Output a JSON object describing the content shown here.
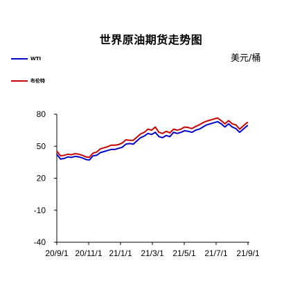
{
  "chart_data": {
    "type": "line",
    "title": "世界原油期货走势图",
    "unit": "美元/桶",
    "ylim": [
      -40,
      80
    ],
    "yticks": [
      80,
      50,
      20,
      -10,
      -40
    ],
    "xticks": [
      "20/9/1",
      "20/11/1",
      "21/1/1",
      "21/3/1",
      "21/5/1",
      "21/7/1",
      "21/9/1"
    ],
    "xrange": [
      "2020-09-01",
      "2021-09-01"
    ],
    "legend_position": "top-left",
    "series": [
      {
        "name": "WTI",
        "color": "#0000cc",
        "x": [
          "2020-09-01",
          "2020-09-08",
          "2020-09-15",
          "2020-09-22",
          "2020-09-29",
          "2020-10-06",
          "2020-10-13",
          "2020-10-20",
          "2020-10-27",
          "2020-11-02",
          "2020-11-09",
          "2020-11-16",
          "2020-11-23",
          "2020-11-30",
          "2020-12-07",
          "2020-12-14",
          "2020-12-21",
          "2020-12-28",
          "2021-01-04",
          "2021-01-11",
          "2021-01-18",
          "2021-01-25",
          "2021-02-01",
          "2021-02-08",
          "2021-02-15",
          "2021-02-22",
          "2021-03-01",
          "2021-03-08",
          "2021-03-15",
          "2021-03-22",
          "2021-03-29",
          "2021-04-05",
          "2021-04-12",
          "2021-04-19",
          "2021-04-26",
          "2021-05-03",
          "2021-05-10",
          "2021-05-17",
          "2021-05-24",
          "2021-05-31",
          "2021-06-07",
          "2021-06-14",
          "2021-06-21",
          "2021-06-28",
          "2021-07-05",
          "2021-07-12",
          "2021-07-19",
          "2021-07-26",
          "2021-08-02",
          "2021-08-09",
          "2021-08-16",
          "2021-08-23",
          "2021-08-30",
          "2021-09-01"
        ],
        "values": [
          42.5,
          38,
          38.5,
          40,
          39.5,
          40.5,
          40,
          39,
          37.5,
          37,
          41,
          41.5,
          44,
          45,
          46,
          47,
          47,
          48,
          49,
          52,
          52.5,
          52,
          55,
          58,
          59.5,
          62,
          61,
          63,
          59,
          58,
          60,
          59,
          63,
          62,
          63,
          64.5,
          64,
          63,
          65,
          66,
          68,
          70,
          71,
          72,
          73,
          71,
          68,
          71,
          68,
          66.5,
          63,
          66,
          69,
          69.5
        ]
      },
      {
        "name": "布伦特",
        "color": "#cc0000",
        "x": [
          "2020-09-01",
          "2020-09-08",
          "2020-09-15",
          "2020-09-22",
          "2020-09-29",
          "2020-10-06",
          "2020-10-13",
          "2020-10-20",
          "2020-10-27",
          "2020-11-02",
          "2020-11-09",
          "2020-11-16",
          "2020-11-23",
          "2020-11-30",
          "2020-12-07",
          "2020-12-14",
          "2020-12-21",
          "2020-12-28",
          "2021-01-04",
          "2021-01-11",
          "2021-01-18",
          "2021-01-25",
          "2021-02-01",
          "2021-02-08",
          "2021-02-15",
          "2021-02-22",
          "2021-03-01",
          "2021-03-08",
          "2021-03-15",
          "2021-03-22",
          "2021-03-29",
          "2021-04-05",
          "2021-04-12",
          "2021-04-19",
          "2021-04-26",
          "2021-05-03",
          "2021-05-10",
          "2021-05-17",
          "2021-05-24",
          "2021-05-31",
          "2021-06-07",
          "2021-06-14",
          "2021-06-21",
          "2021-06-28",
          "2021-07-05",
          "2021-07-12",
          "2021-07-19",
          "2021-07-26",
          "2021-08-02",
          "2021-08-09",
          "2021-08-16",
          "2021-08-23",
          "2021-08-30",
          "2021-09-01"
        ],
        "values": [
          45.5,
          41,
          41.5,
          42.5,
          42,
          43,
          42.5,
          41.5,
          40,
          39.5,
          43.5,
          44.5,
          47.5,
          48.5,
          49.5,
          51,
          51,
          51.5,
          53,
          56,
          55.5,
          55.5,
          58.5,
          61.5,
          63,
          66,
          65,
          68,
          63,
          62,
          64,
          62.5,
          66,
          65,
          66,
          68,
          67.5,
          66.5,
          68.5,
          70,
          72,
          73.5,
          74.5,
          75.5,
          76.5,
          74,
          71,
          74,
          71,
          70,
          66,
          69,
          72,
          72.5
        ]
      }
    ]
  }
}
